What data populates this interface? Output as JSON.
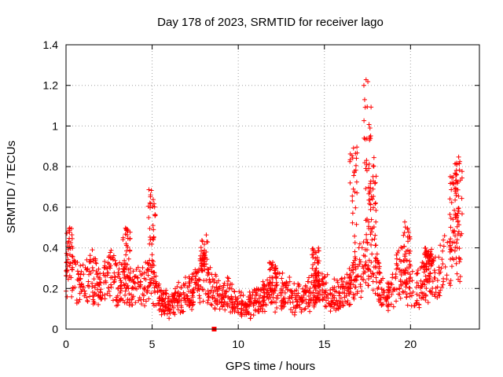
{
  "chart_data": {
    "type": "scatter",
    "title": "Day 178 of 2023, SRMTID for receiver lago",
    "xlabel": "GPS time / hours",
    "ylabel": "SRMTID / TECUs",
    "xlim": [
      0,
      24
    ],
    "ylim": [
      0,
      1.4
    ],
    "xticks": [
      "0",
      "5",
      "10",
      "15",
      "20"
    ],
    "yticks": [
      "0",
      "0.2",
      "0.4",
      "0.6",
      "0.8",
      "1",
      "1.2",
      "1.4"
    ],
    "grid": true,
    "marker": "+",
    "color": "#ff0000",
    "profile": [
      [
        0.0,
        0.25
      ],
      [
        0.3,
        0.3
      ],
      [
        0.6,
        0.22
      ],
      [
        1.0,
        0.25
      ],
      [
        1.5,
        0.26
      ],
      [
        2.0,
        0.2
      ],
      [
        2.5,
        0.27
      ],
      [
        3.0,
        0.23
      ],
      [
        3.5,
        0.25
      ],
      [
        4.0,
        0.19
      ],
      [
        4.5,
        0.22
      ],
      [
        5.0,
        0.24
      ],
      [
        5.5,
        0.14
      ],
      [
        6.0,
        0.12
      ],
      [
        6.5,
        0.15
      ],
      [
        7.0,
        0.17
      ],
      [
        7.5,
        0.2
      ],
      [
        8.0,
        0.26
      ],
      [
        8.5,
        0.19
      ],
      [
        9.0,
        0.18
      ],
      [
        9.5,
        0.16
      ],
      [
        10.0,
        0.13
      ],
      [
        10.5,
        0.11
      ],
      [
        11.0,
        0.14
      ],
      [
        11.5,
        0.16
      ],
      [
        12.0,
        0.19
      ],
      [
        12.5,
        0.18
      ],
      [
        13.0,
        0.17
      ],
      [
        13.5,
        0.15
      ],
      [
        14.0,
        0.17
      ],
      [
        14.5,
        0.2
      ],
      [
        15.0,
        0.18
      ],
      [
        15.5,
        0.16
      ],
      [
        16.0,
        0.17
      ],
      [
        16.5,
        0.2
      ],
      [
        16.8,
        0.27
      ],
      [
        17.2,
        0.3
      ],
      [
        17.6,
        0.36
      ],
      [
        18.0,
        0.3
      ],
      [
        18.3,
        0.17
      ],
      [
        18.7,
        0.16
      ],
      [
        19.0,
        0.22
      ],
      [
        19.5,
        0.3
      ],
      [
        20.0,
        0.18
      ],
      [
        20.5,
        0.2
      ],
      [
        21.0,
        0.25
      ],
      [
        21.5,
        0.28
      ],
      [
        22.0,
        0.32
      ],
      [
        22.5,
        0.42
      ],
      [
        22.9,
        0.4
      ]
    ],
    "bursts": [
      [
        0.15,
        0.5
      ],
      [
        3.5,
        0.5
      ],
      [
        5.0,
        0.69
      ],
      [
        8.0,
        0.5
      ],
      [
        12.0,
        0.33
      ],
      [
        14.5,
        0.4
      ],
      [
        16.7,
        0.94
      ],
      [
        17.5,
        1.25
      ],
      [
        17.8,
        0.85
      ],
      [
        19.8,
        0.53
      ],
      [
        21.0,
        0.4
      ],
      [
        22.5,
        0.77
      ],
      [
        22.8,
        0.85
      ]
    ],
    "outlier": [
      8.6,
      0.0
    ]
  }
}
